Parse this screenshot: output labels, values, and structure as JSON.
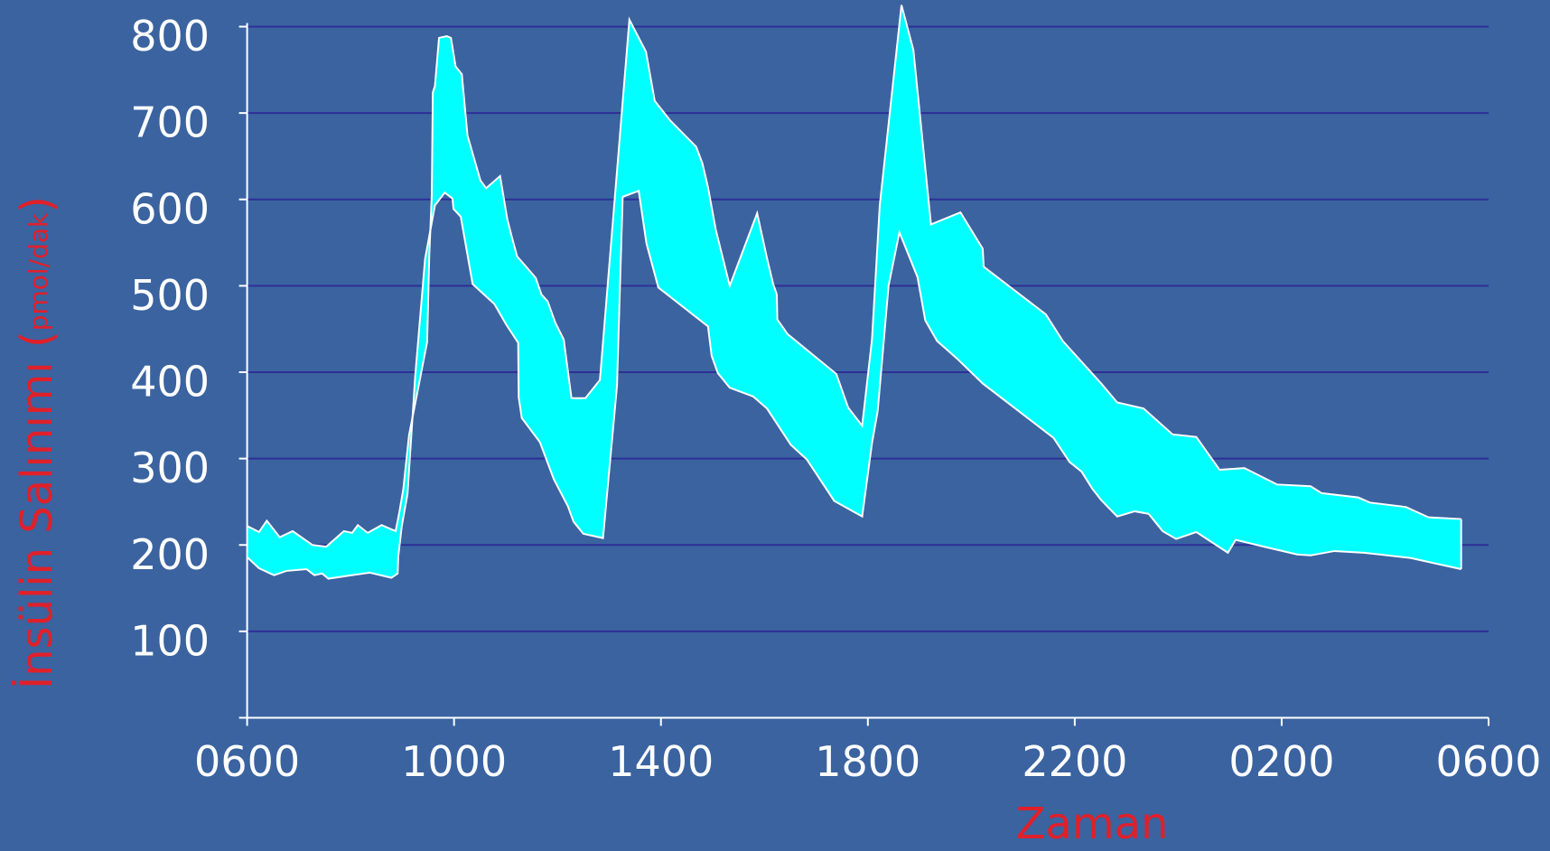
{
  "chart_data": {
    "type": "band",
    "xlabel": "Zaman",
    "ylabel": "İnsülin Salınımı (",
    "ylabel_unit": "pmol/dak",
    "ylabel_close": ")",
    "xlim": [
      6,
      30
    ],
    "ylim": [
      0,
      800
    ],
    "xticks": [
      {
        "value": 6,
        "label": "0600"
      },
      {
        "value": 10,
        "label": "1000"
      },
      {
        "value": 14,
        "label": "1400"
      },
      {
        "value": 18,
        "label": "1800"
      },
      {
        "value": 22,
        "label": "2200"
      },
      {
        "value": 26,
        "label": "0200"
      },
      {
        "value": 30,
        "label": "0600"
      }
    ],
    "yticks": [
      100,
      200,
      300,
      400,
      500,
      600,
      700,
      800
    ],
    "grid": true,
    "color": "#00ffff",
    "series": [
      {
        "x": [
          6.0,
          6.23,
          6.38,
          6.63,
          6.88,
          7.26,
          7.53,
          7.87,
          8.03,
          8.14,
          8.33,
          8.6,
          8.87,
          8.94,
          9.02,
          9.13,
          9.48,
          9.52,
          9.57,
          9.59,
          9.63,
          9.71,
          9.86,
          9.94,
          10.03,
          10.15,
          10.26,
          10.51,
          10.62,
          10.89,
          11.03,
          11.12,
          11.22,
          11.41,
          11.58,
          11.69,
          11.81,
          11.96,
          12.12,
          12.27,
          12.54,
          12.82,
          13.39,
          13.71,
          13.88,
          14.17,
          14.68,
          14.8,
          14.91,
          15.06,
          15.33,
          15.86,
          16.05,
          16.17,
          16.24,
          16.25,
          16.45,
          17.39,
          17.62,
          17.89,
          18.08,
          18.23,
          18.65,
          18.88,
          19.22,
          19.79,
          20.22,
          20.24,
          21.44,
          21.77,
          22.51,
          22.82,
          23.33,
          23.89,
          24.35,
          24.8,
          25.28,
          25.91,
          26.56,
          26.77,
          27.48,
          27.71,
          28.4,
          28.84,
          29.47
        ],
        "values": [
          222,
          215,
          228,
          209,
          216,
          200,
          198,
          216,
          214,
          223,
          214,
          223,
          216,
          237,
          265,
          327,
          435,
          533,
          606,
          724,
          731,
          787,
          789,
          787,
          754,
          745,
          674,
          622,
          613,
          627,
          577,
          556,
          534,
          521,
          509,
          490,
          482,
          457,
          438,
          370,
          370,
          391,
          808,
          771,
          714,
          692,
          661,
          642,
          614,
          565,
          500,
          584,
          532,
          502,
          490,
          461,
          444,
          398,
          359,
          338,
          438,
          593,
          825,
          773,
          571,
          585,
          543,
          522,
          467,
          436,
          387,
          365,
          358,
          328,
          325,
          287,
          289,
          270,
          268,
          260,
          255,
          249,
          244,
          232,
          230
        ]
      },
      {
        "x": [
          6.0,
          6.23,
          6.52,
          6.76,
          7.15,
          7.3,
          7.45,
          7.57,
          7.91,
          8.37,
          8.79,
          8.91,
          8.92,
          8.99,
          9.1,
          9.25,
          9.44,
          9.63,
          9.82,
          9.97,
          9.99,
          10.13,
          10.36,
          10.78,
          11.01,
          11.24,
          11.25,
          11.31,
          11.66,
          11.93,
          12.2,
          12.31,
          12.5,
          12.88,
          13.15,
          13.26,
          13.57,
          13.72,
          13.95,
          14.91,
          14.98,
          15.1,
          15.33,
          15.78,
          16.05,
          16.51,
          16.82,
          17.35,
          17.89,
          18.08,
          18.19,
          18.4,
          18.61,
          18.96,
          19.11,
          19.34,
          19.72,
          20.22,
          21.59,
          21.9,
          22.13,
          22.34,
          22.51,
          22.82,
          23.16,
          23.43,
          23.7,
          23.96,
          24.35,
          24.96,
          25.11,
          25.73,
          26.3,
          26.56,
          27.02,
          27.59,
          28.49,
          29.47
        ],
        "values": [
          186,
          173,
          165,
          170,
          172,
          165,
          167,
          161,
          164,
          168,
          162,
          167,
          186,
          222,
          259,
          396,
          531,
          593,
          608,
          601,
          589,
          580,
          502,
          479,
          455,
          434,
          371,
          347,
          319,
          276,
          245,
          227,
          213,
          208,
          384,
          603,
          610,
          549,
          498,
          453,
          419,
          399,
          382,
          372,
          358,
          316,
          299,
          251,
          233,
          318,
          355,
          500,
          562,
          510,
          460,
          436,
          416,
          387,
          324,
          296,
          285,
          265,
          252,
          233,
          239,
          236,
          216,
          207,
          215,
          191,
          206,
          197,
          189,
          188,
          193,
          191,
          185,
          172
        ]
      }
    ]
  }
}
